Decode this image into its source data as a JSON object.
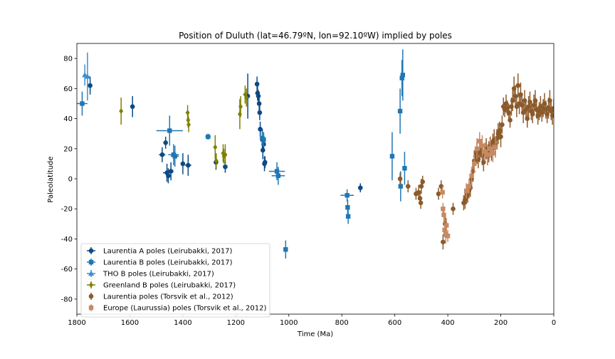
{
  "chart_data": {
    "type": "scatter",
    "title": "Position of Duluth (lat=46.79ºN, lon=92.10ºW) implied by poles",
    "xlabel": "Time (Ma)",
    "ylabel": "Paleolatitude",
    "xlim": [
      1800,
      0
    ],
    "ylim": [
      -90,
      90
    ],
    "x_reversed": true,
    "xticks": [
      1800,
      1600,
      1400,
      1200,
      1000,
      800,
      600,
      400,
      200,
      0
    ],
    "yticks": [
      -80,
      -60,
      -40,
      -20,
      0,
      20,
      40,
      60,
      80
    ],
    "legend_position": "lower-left",
    "grid": false,
    "series": [
      {
        "name": "Laurentia A poles (Leirubakki, 2017)",
        "color": "#0b4a85",
        "marker": "circle",
        "points": [
          [
            1750,
            62,
            0,
            6
          ],
          [
            1590,
            48,
            0,
            7
          ],
          [
            1478,
            16,
            12,
            5
          ],
          [
            1465,
            24,
            0,
            4
          ],
          [
            1460,
            4,
            15,
            6
          ],
          [
            1455,
            2,
            8,
            5
          ],
          [
            1445,
            5,
            10,
            6
          ],
          [
            1400,
            10,
            8,
            7
          ],
          [
            1380,
            9,
            12,
            7
          ],
          [
            1275,
            11,
            0,
            5
          ],
          [
            1240,
            8,
            0,
            4
          ],
          [
            1155,
            55,
            0,
            15
          ],
          [
            1120,
            63,
            0,
            5
          ],
          [
            1118,
            57,
            0,
            5
          ],
          [
            1115,
            55,
            0,
            4
          ],
          [
            1112,
            50,
            0,
            5
          ],
          [
            1110,
            44,
            0,
            5
          ],
          [
            1108,
            33,
            0,
            5
          ],
          [
            1100,
            26,
            0,
            7
          ],
          [
            1098,
            19,
            0,
            6
          ],
          [
            1095,
            23,
            0,
            5
          ],
          [
            1092,
            10,
            0,
            5
          ],
          [
            1090,
            11,
            0,
            4
          ],
          [
            730,
            -6,
            0,
            3
          ]
        ]
      },
      {
        "name": "Laurentia B poles (Leirubakki, 2017)",
        "color": "#1f77b4",
        "marker": "square",
        "points": [
          [
            1780,
            50,
            20,
            8
          ],
          [
            1450,
            32,
            50,
            10
          ],
          [
            1435,
            16,
            20,
            7
          ],
          [
            1430,
            15,
            15,
            7
          ],
          [
            1305,
            28,
            10,
            2
          ],
          [
            1100,
            27,
            10,
            5
          ],
          [
            1095,
            26,
            8,
            5
          ],
          [
            1045,
            5,
            30,
            6
          ],
          [
            1040,
            2,
            25,
            6
          ],
          [
            1012,
            -47,
            8,
            6
          ],
          [
            780,
            -11,
            25,
            4
          ],
          [
            778,
            -19,
            0,
            5
          ],
          [
            776,
            -25,
            0,
            5
          ],
          [
            610,
            15,
            0,
            16
          ],
          [
            580,
            45,
            0,
            15
          ],
          [
            578,
            -5,
            0,
            10
          ],
          [
            573,
            67,
            0,
            12
          ],
          [
            570,
            69,
            0,
            17
          ],
          [
            563,
            7,
            0,
            11
          ]
        ]
      },
      {
        "name": "THO B poles (Leirubakki, 2017)",
        "color": "#3a8fd1",
        "marker": "triangle",
        "points": [
          [
            1770,
            69,
            0,
            7
          ],
          [
            1760,
            68,
            8,
            16
          ]
        ]
      },
      {
        "name": "Greenland B poles (Leirubakki, 2017)",
        "color": "#808000",
        "marker": "diamond",
        "points": [
          [
            1633,
            45,
            0,
            9
          ],
          [
            1382,
            44,
            0,
            5
          ],
          [
            1380,
            39,
            0,
            5
          ],
          [
            1378,
            36,
            0,
            5
          ],
          [
            1278,
            21,
            0,
            8
          ],
          [
            1274,
            12,
            0,
            5
          ],
          [
            1248,
            17,
            0,
            6
          ],
          [
            1245,
            15,
            0,
            5
          ],
          [
            1240,
            16,
            0,
            7
          ],
          [
            1185,
            43,
            0,
            10
          ],
          [
            1182,
            48,
            0,
            7
          ],
          [
            1165,
            56,
            0,
            6
          ],
          [
            1160,
            54,
            0,
            6
          ]
        ]
      },
      {
        "name": "Laurentia poles (Torsvik et al., 2012)",
        "color": "#8b5a2b",
        "marker": "circle",
        "points": [
          [
            580,
            0,
            0,
            4
          ],
          [
            550,
            -5,
            0,
            4
          ],
          [
            520,
            -10,
            0,
            4
          ],
          [
            510,
            -9,
            0,
            5
          ],
          [
            505,
            -13,
            0,
            4
          ],
          [
            502,
            -16,
            0,
            4
          ],
          [
            500,
            -5,
            0,
            5
          ],
          [
            495,
            -2,
            0,
            4
          ],
          [
            435,
            -10,
            0,
            4
          ],
          [
            425,
            -5,
            0,
            4
          ],
          [
            418,
            -42,
            0,
            5
          ],
          [
            410,
            -30,
            0,
            5
          ],
          [
            380,
            -20,
            0,
            4
          ],
          [
            340,
            -16,
            0,
            5
          ],
          [
            335,
            -14,
            0,
            6
          ],
          [
            330,
            -12,
            0,
            5
          ],
          [
            325,
            -10,
            0,
            6
          ],
          [
            320,
            -8,
            0,
            5
          ],
          [
            315,
            -6,
            0,
            6
          ],
          [
            310,
            0,
            0,
            6
          ],
          [
            305,
            5,
            0,
            7
          ],
          [
            300,
            12,
            0,
            7
          ],
          [
            295,
            15,
            0,
            6
          ],
          [
            290,
            17,
            0,
            7
          ],
          [
            285,
            13,
            0,
            6
          ],
          [
            280,
            18,
            0,
            7
          ],
          [
            275,
            20,
            0,
            6
          ],
          [
            270,
            16,
            0,
            7
          ],
          [
            265,
            11,
            0,
            6
          ],
          [
            260,
            18,
            0,
            6
          ],
          [
            255,
            20,
            0,
            7
          ],
          [
            250,
            15,
            0,
            6
          ],
          [
            245,
            18,
            0,
            7
          ],
          [
            240,
            22,
            0,
            6
          ],
          [
            235,
            19,
            0,
            7
          ],
          [
            230,
            24,
            0,
            6
          ],
          [
            225,
            26,
            0,
            7
          ],
          [
            220,
            22,
            0,
            6
          ],
          [
            215,
            27,
            0,
            6
          ],
          [
            210,
            30,
            0,
            7
          ],
          [
            205,
            32,
            0,
            6
          ],
          [
            200,
            28,
            0,
            7
          ],
          [
            195,
            36,
            0,
            6
          ],
          [
            190,
            48,
            0,
            6
          ],
          [
            185,
            46,
            0,
            5
          ],
          [
            180,
            50,
            0,
            6
          ],
          [
            175,
            47,
            0,
            5
          ],
          [
            170,
            44,
            0,
            6
          ],
          [
            165,
            39,
            0,
            5
          ],
          [
            160,
            48,
            0,
            6
          ],
          [
            155,
            52,
            0,
            7
          ],
          [
            150,
            60,
            0,
            8
          ],
          [
            145,
            55,
            0,
            7
          ],
          [
            140,
            48,
            0,
            7
          ],
          [
            135,
            62,
            0,
            8
          ],
          [
            130,
            50,
            0,
            7
          ],
          [
            125,
            56,
            0,
            8
          ],
          [
            120,
            49,
            0,
            6
          ],
          [
            115,
            44,
            0,
            7
          ],
          [
            110,
            52,
            0,
            7
          ],
          [
            105,
            46,
            0,
            6
          ],
          [
            100,
            40,
            0,
            6
          ],
          [
            95,
            48,
            0,
            7
          ],
          [
            90,
            51,
            0,
            7
          ],
          [
            85,
            45,
            0,
            6
          ],
          [
            80,
            43,
            0,
            6
          ],
          [
            75,
            49,
            0,
            7
          ],
          [
            70,
            52,
            0,
            7
          ],
          [
            65,
            46,
            0,
            6
          ],
          [
            60,
            42,
            0,
            6
          ],
          [
            55,
            45,
            0,
            6
          ],
          [
            50,
            48,
            0,
            7
          ],
          [
            45,
            44,
            0,
            6
          ],
          [
            40,
            47,
            0,
            6
          ],
          [
            35,
            50,
            0,
            7
          ],
          [
            30,
            46,
            0,
            6
          ],
          [
            25,
            43,
            0,
            6
          ],
          [
            20,
            47,
            0,
            7
          ],
          [
            15,
            52,
            0,
            7
          ],
          [
            10,
            45,
            0,
            6
          ],
          [
            5,
            42,
            0,
            6
          ],
          [
            0,
            47,
            0,
            6
          ]
        ]
      },
      {
        "name": "Europe (Laurussia) poles (Torsvik et al., 2012)",
        "color": "#c58a63",
        "marker": "square",
        "points": [
          [
            420,
            -9,
            0,
            4
          ],
          [
            418,
            -20,
            0,
            4
          ],
          [
            415,
            -24,
            0,
            5
          ],
          [
            412,
            -34,
            0,
            5
          ],
          [
            408,
            -37,
            0,
            6
          ],
          [
            405,
            -31,
            0,
            5
          ],
          [
            400,
            -38,
            0,
            4
          ],
          [
            330,
            -8,
            0,
            5
          ],
          [
            320,
            -5,
            0,
            5
          ],
          [
            310,
            2,
            0,
            6
          ],
          [
            300,
            10,
            0,
            6
          ],
          [
            290,
            20,
            0,
            7
          ],
          [
            280,
            25,
            0,
            6
          ],
          [
            270,
            22,
            0,
            7
          ],
          [
            260,
            18,
            0,
            6
          ],
          [
            250,
            16,
            0,
            7
          ],
          [
            240,
            20,
            0,
            6
          ],
          [
            230,
            17,
            0,
            6
          ],
          [
            220,
            21,
            0,
            7
          ]
        ]
      }
    ]
  }
}
